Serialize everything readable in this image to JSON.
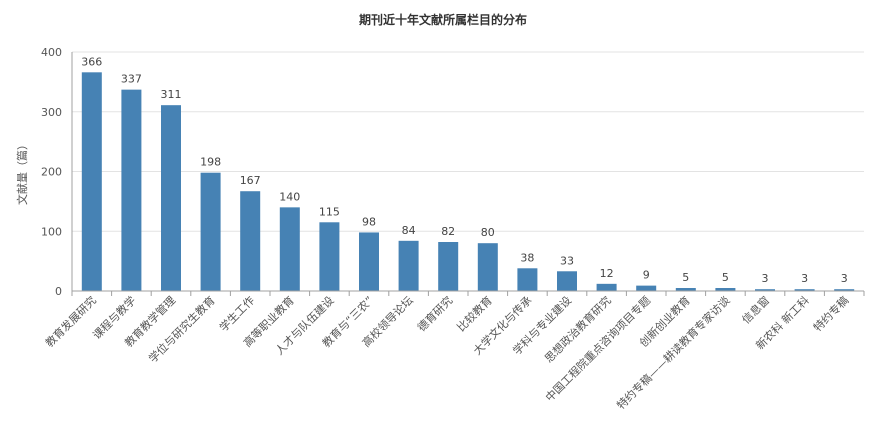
{
  "chart_data": {
    "type": "bar",
    "title": "期刊近十年文献所属栏目的分布",
    "xlabel": "",
    "ylabel": "文献量（篇）",
    "ylim": [
      0,
      400
    ],
    "yticks": [
      0,
      100,
      200,
      300,
      400
    ],
    "grid": true,
    "legend": "none",
    "bar_color": "#4682b4",
    "categories": [
      "教育发展研究",
      "课程与教学",
      "教育教学管理",
      "学位与研究生教育",
      "学生工作",
      "高等职业教育",
      "人才与队伍建设",
      "教育与“三农”",
      "高校领导论坛",
      "德育研究",
      "比较教育",
      "大学文化与传承",
      "学科与专业建设",
      "思想政治教育研究",
      "中国工程院重点咨询项目专题",
      "创新创业教育",
      "特约专稿——耕读教育专家访谈",
      "信息窗",
      "新农科 新工科",
      "特约专稿"
    ],
    "values": [
      366,
      337,
      311,
      198,
      167,
      140,
      115,
      98,
      84,
      82,
      80,
      38,
      33,
      12,
      9,
      5,
      5,
      3,
      3,
      3
    ]
  }
}
